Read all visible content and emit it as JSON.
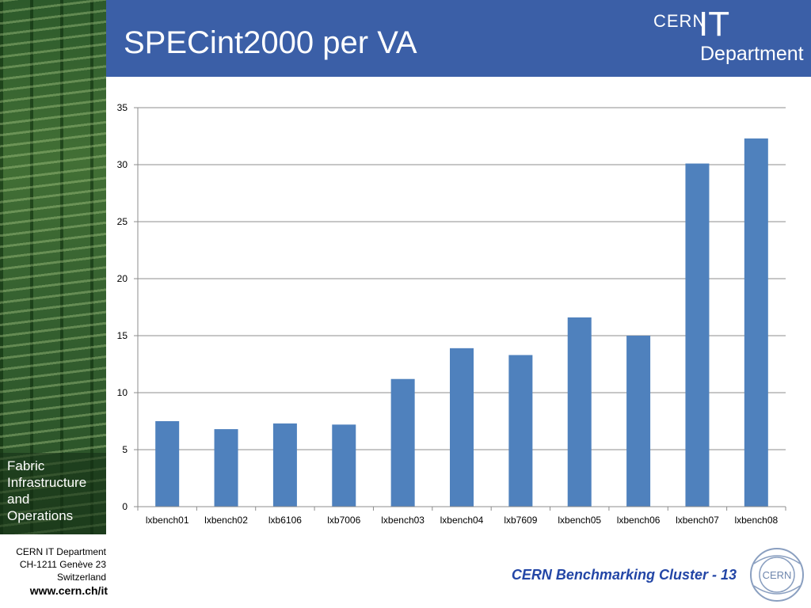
{
  "slide": {
    "title": "SPECint2000 per VA",
    "sidebar_label": [
      "Fabric",
      "Infrastructure",
      "and",
      "Operations"
    ],
    "logo": {
      "cern": "CERN",
      "it": "IT",
      "department": "Department"
    },
    "footer": {
      "address": [
        "CERN IT Department",
        "CH-1211 Genève 23",
        "Switzerland"
      ],
      "url": "www.cern.ch/it",
      "caption": "CERN Benchmarking Cluster - 13",
      "emblem": "CERN"
    },
    "colors": {
      "title_bar": "#3b5fa7",
      "bar": "#4f81bd",
      "caption": "#2346a6"
    }
  },
  "chart_data": {
    "type": "bar",
    "categories": [
      "lxbench01",
      "lxbench02",
      "lxb6106",
      "lxb7006",
      "lxbench03",
      "lxbench04",
      "lxb7609",
      "lxbench05",
      "lxbench06",
      "lxbench07",
      "lxbench08"
    ],
    "values": [
      7.5,
      6.8,
      7.3,
      7.2,
      11.2,
      13.9,
      13.3,
      16.6,
      15.0,
      30.1,
      32.3
    ],
    "title": "",
    "xlabel": "",
    "ylabel": "",
    "ylim": [
      0,
      35
    ],
    "yticks": [
      0,
      5,
      10,
      15,
      20,
      25,
      30,
      35
    ],
    "grid": true,
    "legend": "none"
  }
}
